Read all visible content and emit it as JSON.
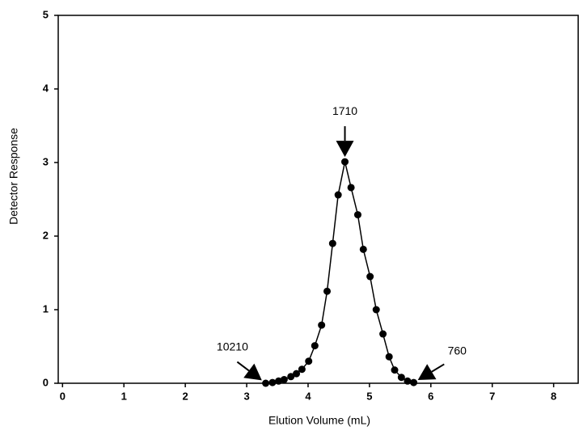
{
  "chart_data": {
    "type": "line",
    "x_label": "Elution Volume (mL)",
    "y_label": "Detector Response",
    "x": [
      3.31,
      3.42,
      3.52,
      3.61,
      3.72,
      3.81,
      3.9,
      4.01,
      4.11,
      4.22,
      4.31,
      4.4,
      4.49,
      4.6,
      4.7,
      4.81,
      4.9,
      5.01,
      5.11,
      5.22,
      5.32,
      5.41,
      5.52,
      5.62,
      5.72
    ],
    "series": [
      {
        "color": "#000000",
        "values": [
          0,
          0.01,
          0.03,
          0.05,
          0.09,
          0.13,
          0.19,
          0.3,
          0.51,
          0.79,
          1.25,
          1.9,
          2.56,
          3.01,
          2.66,
          2.29,
          1.82,
          1.45,
          1.0,
          0.67,
          0.36,
          0.18,
          0.08,
          0.03,
          0.01
        ]
      }
    ],
    "annotations": [
      "10210",
      "1710",
      "760"
    ],
    "xlim": [
      -0.07,
      8.4
    ],
    "xticks": [
      0,
      1,
      2,
      3,
      4,
      5,
      6,
      7,
      8
    ],
    "ylim": [
      0,
      5
    ],
    "yticks": [
      0,
      1,
      2,
      3,
      4,
      5
    ],
    "grid": false
  }
}
